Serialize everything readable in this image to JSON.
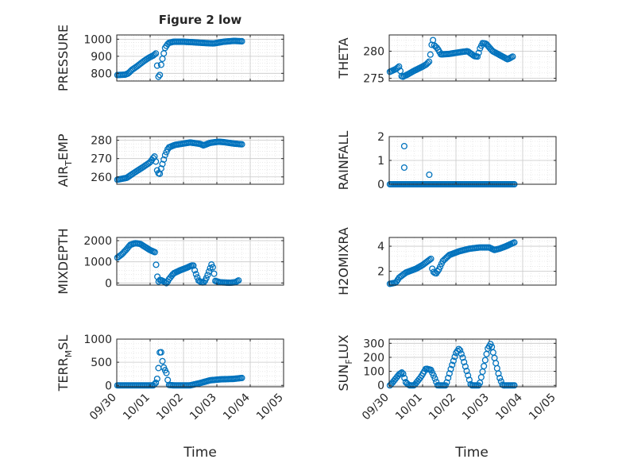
{
  "figure": {
    "title": "Figure 2 low",
    "xlabel": "Time"
  },
  "colors": {
    "marker": "#0072BD",
    "axis": "#262626",
    "grid": "#c8c8c8",
    "minor_grid": "#dcdcdc",
    "background": "#ffffff"
  },
  "chart_data": [
    {
      "type": "scatter",
      "ylabel": "PRESSURE",
      "xlim": [
        0,
        5
      ],
      "ylim": [
        755,
        1025
      ],
      "yticks": [
        800,
        900,
        1000
      ],
      "knots": [
        [
          0.02,
          790
        ],
        [
          0.25,
          792
        ],
        [
          0.35,
          800
        ],
        [
          0.45,
          820
        ],
        [
          0.6,
          840
        ],
        [
          0.8,
          870
        ],
        [
          0.95,
          890
        ],
        [
          1.1,
          905
        ],
        [
          1.18,
          918
        ],
        [
          1.22,
          822
        ],
        [
          1.25,
          780
        ],
        [
          1.28,
          760
        ],
        [
          1.3,
          822
        ],
        [
          1.35,
          870
        ],
        [
          1.45,
          950
        ],
        [
          1.55,
          978
        ],
        [
          1.7,
          985
        ],
        [
          2.0,
          985
        ],
        [
          2.3,
          982
        ],
        [
          2.6,
          978
        ],
        [
          2.9,
          975
        ],
        [
          3.2,
          985
        ],
        [
          3.5,
          990
        ],
        [
          3.75,
          988
        ]
      ],
      "n": 95,
      "subplot": 1
    },
    {
      "type": "scatter",
      "ylabel": "THETA",
      "xlim": [
        0,
        5
      ],
      "ylim": [
        274.5,
        283
      ],
      "yticks": [
        275,
        280
      ],
      "knots": [
        [
          0.02,
          276.2
        ],
        [
          0.2,
          276.7
        ],
        [
          0.3,
          277.2
        ],
        [
          0.38,
          275.2
        ],
        [
          0.55,
          275.7
        ],
        [
          0.75,
          276.4
        ],
        [
          0.95,
          277.0
        ],
        [
          1.1,
          277.5
        ],
        [
          1.2,
          278.1
        ],
        [
          1.25,
          280.0
        ],
        [
          1.3,
          282.6
        ],
        [
          1.33,
          281.2
        ],
        [
          1.45,
          280.5
        ],
        [
          1.55,
          279.4
        ],
        [
          1.8,
          279.5
        ],
        [
          2.1,
          279.8
        ],
        [
          2.35,
          280.0
        ],
        [
          2.55,
          279.1
        ],
        [
          2.65,
          279.0
        ],
        [
          2.72,
          280.5
        ],
        [
          2.8,
          281.5
        ],
        [
          2.9,
          281.4
        ],
        [
          3.1,
          280.0
        ],
        [
          3.4,
          279.0
        ],
        [
          3.55,
          278.5
        ],
        [
          3.7,
          279.0
        ]
      ],
      "n": 95,
      "subplot": 2
    },
    {
      "type": "scatter",
      "ylabel": "AIR_TEMP",
      "ylabel_base": "AIR",
      "ylabel_sub": "T",
      "ylabel_rest": "EMP",
      "xlim": [
        0,
        5
      ],
      "ylim": [
        256,
        282
      ],
      "yticks": [
        260,
        270,
        280
      ],
      "knots": [
        [
          0.02,
          258.5
        ],
        [
          0.3,
          259.5
        ],
        [
          0.5,
          262
        ],
        [
          0.8,
          265.5
        ],
        [
          1.0,
          268
        ],
        [
          1.1,
          270.5
        ],
        [
          1.15,
          271.5
        ],
        [
          1.2,
          264
        ],
        [
          1.25,
          262
        ],
        [
          1.28,
          261
        ],
        [
          1.32,
          264
        ],
        [
          1.45,
          272
        ],
        [
          1.55,
          276
        ],
        [
          1.75,
          277.5
        ],
        [
          2.0,
          278.2
        ],
        [
          2.2,
          278.8
        ],
        [
          2.5,
          278.0
        ],
        [
          2.6,
          277.2
        ],
        [
          2.8,
          278.6
        ],
        [
          3.05,
          279.2
        ],
        [
          3.2,
          279.0
        ],
        [
          3.5,
          278.2
        ],
        [
          3.75,
          277.8
        ]
      ],
      "n": 95,
      "subplot": 3
    },
    {
      "type": "scatter",
      "ylabel": "RAINFALL",
      "xlim": [
        0,
        5
      ],
      "ylim": [
        0,
        2
      ],
      "yticks": [
        0,
        1,
        2
      ],
      "knots": [
        [
          0.02,
          0
        ],
        [
          3.75,
          0
        ]
      ],
      "extra_points": [
        [
          0.45,
          1.6
        ],
        [
          0.45,
          0.7
        ],
        [
          1.2,
          0.4
        ]
      ],
      "n": 95,
      "subplot": 4
    },
    {
      "type": "scatter",
      "ylabel": "MIXDEPTH",
      "xlim": [
        0,
        5
      ],
      "ylim": [
        -100,
        2150
      ],
      "yticks": [
        0,
        1000,
        2000
      ],
      "knots": [
        [
          0.02,
          1200
        ],
        [
          0.15,
          1350
        ],
        [
          0.3,
          1600
        ],
        [
          0.4,
          1800
        ],
        [
          0.55,
          1880
        ],
        [
          0.7,
          1850
        ],
        [
          0.85,
          1700
        ],
        [
          1.0,
          1550
        ],
        [
          1.15,
          1450
        ],
        [
          1.2,
          420
        ],
        [
          1.25,
          60
        ],
        [
          1.3,
          150
        ],
        [
          1.4,
          80
        ],
        [
          1.5,
          -20
        ],
        [
          1.55,
          150
        ],
        [
          1.7,
          450
        ],
        [
          1.9,
          600
        ],
        [
          2.1,
          720
        ],
        [
          2.25,
          830
        ],
        [
          2.3,
          820
        ],
        [
          2.35,
          520
        ],
        [
          2.45,
          120
        ],
        [
          2.55,
          20
        ],
        [
          2.62,
          30
        ],
        [
          2.7,
          280
        ],
        [
          2.8,
          700
        ],
        [
          2.85,
          920
        ],
        [
          2.9,
          600
        ],
        [
          2.95,
          100
        ],
        [
          3.1,
          30
        ],
        [
          3.4,
          10
        ],
        [
          3.55,
          30
        ],
        [
          3.65,
          120
        ]
      ],
      "n": 95,
      "subplot": 5
    },
    {
      "type": "scatter",
      "ylabel": "H2OMIXRA",
      "xlim": [
        0,
        5
      ],
      "ylim": [
        0.9,
        4.7
      ],
      "yticks": [
        2,
        4
      ],
      "knots": [
        [
          0.02,
          1.0
        ],
        [
          0.2,
          1.1
        ],
        [
          0.3,
          1.5
        ],
        [
          0.5,
          1.9
        ],
        [
          0.8,
          2.2
        ],
        [
          1.0,
          2.5
        ],
        [
          1.15,
          2.8
        ],
        [
          1.25,
          3.0
        ],
        [
          1.3,
          2.0
        ],
        [
          1.4,
          1.8
        ],
        [
          1.5,
          2.2
        ],
        [
          1.6,
          2.8
        ],
        [
          1.8,
          3.3
        ],
        [
          2.1,
          3.6
        ],
        [
          2.4,
          3.8
        ],
        [
          2.7,
          3.9
        ],
        [
          3.0,
          3.9
        ],
        [
          3.15,
          3.7
        ],
        [
          3.3,
          3.8
        ],
        [
          3.5,
          4.0
        ],
        [
          3.75,
          4.3
        ]
      ],
      "n": 95,
      "subplot": 6
    },
    {
      "type": "scatter",
      "ylabel": "TERR_MSL",
      "ylabel_base": "TERR",
      "ylabel_sub": "M",
      "ylabel_rest": "SL",
      "xlim": [
        0,
        5
      ],
      "ylim": [
        -30,
        1000
      ],
      "yticks": [
        0,
        500,
        1000
      ],
      "knots": [
        [
          0.02,
          0
        ],
        [
          1.1,
          0
        ],
        [
          1.2,
          80
        ],
        [
          1.28,
          550
        ],
        [
          1.3,
          880
        ],
        [
          1.35,
          600
        ],
        [
          1.4,
          400
        ],
        [
          1.5,
          250
        ],
        [
          1.55,
          10
        ],
        [
          1.7,
          0
        ],
        [
          2.2,
          0
        ],
        [
          2.5,
          50
        ],
        [
          2.8,
          110
        ],
        [
          3.1,
          130
        ],
        [
          3.5,
          140
        ],
        [
          3.75,
          160
        ]
      ],
      "n": 95,
      "subplot": 7
    },
    {
      "type": "scatter",
      "ylabel": "SUN_FLUX",
      "ylabel_base": "SUN",
      "ylabel_sub": "F",
      "ylabel_rest": "LUX",
      "xlim": [
        0,
        5
      ],
      "ylim": [
        -10,
        330
      ],
      "yticks": [
        0,
        100,
        200,
        300
      ],
      "knots": [
        [
          0.02,
          0
        ],
        [
          0.1,
          20
        ],
        [
          0.3,
          80
        ],
        [
          0.4,
          95
        ],
        [
          0.5,
          20
        ],
        [
          0.6,
          0
        ],
        [
          0.75,
          0
        ],
        [
          0.95,
          60
        ],
        [
          1.1,
          120
        ],
        [
          1.25,
          110
        ],
        [
          1.35,
          60
        ],
        [
          1.45,
          0
        ],
        [
          1.7,
          0
        ],
        [
          1.85,
          120
        ],
        [
          2.0,
          230
        ],
        [
          2.1,
          265
        ],
        [
          2.2,
          200
        ],
        [
          2.35,
          80
        ],
        [
          2.45,
          0
        ],
        [
          2.7,
          0
        ],
        [
          2.85,
          150
        ],
        [
          2.95,
          260
        ],
        [
          3.05,
          300
        ],
        [
          3.15,
          200
        ],
        [
          3.3,
          60
        ],
        [
          3.4,
          0
        ],
        [
          3.75,
          0
        ]
      ],
      "n": 95,
      "subplot": 8
    }
  ],
  "xtick_labels": [
    "09/30",
    "10/01",
    "10/02",
    "10/03",
    "10/04",
    "10/05"
  ]
}
